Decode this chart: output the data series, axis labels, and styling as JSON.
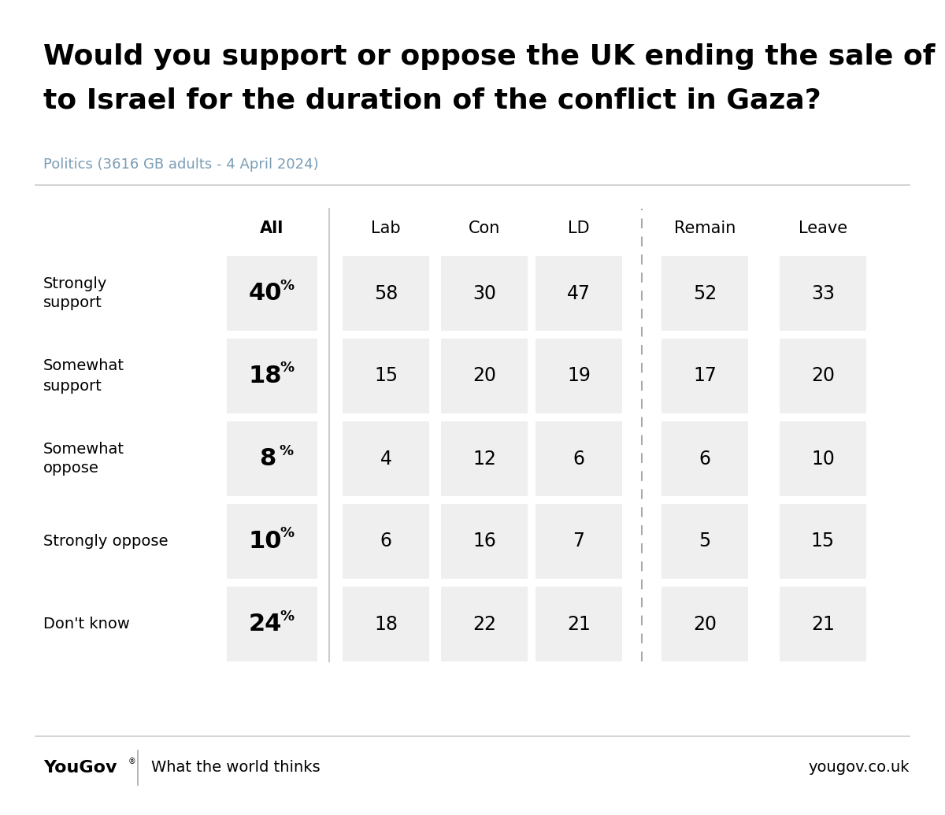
{
  "title_line1": "Would you support or oppose the UK ending the sale of arms",
  "title_line2": "to Israel for the duration of the conflict in Gaza?",
  "subtitle": "Politics (3616 GB adults - 4 April 2024)",
  "columns": [
    "All",
    "Lab",
    "Con",
    "LD",
    "Remain",
    "Leave"
  ],
  "rows": [
    {
      "label": "Strongly\nsupport",
      "values": [
        40,
        58,
        30,
        47,
        52,
        33
      ]
    },
    {
      "label": "Somewhat\nsupport",
      "values": [
        18,
        15,
        20,
        19,
        17,
        20
      ]
    },
    {
      "label": "Somewhat\noppose",
      "values": [
        8,
        4,
        12,
        6,
        6,
        10
      ]
    },
    {
      "label": "Strongly oppose",
      "values": [
        10,
        6,
        16,
        7,
        5,
        15
      ]
    },
    {
      "label": "Don't know",
      "values": [
        24,
        18,
        22,
        21,
        20,
        21
      ]
    }
  ],
  "cell_bg_color": "#efefef",
  "bg_color": "#ffffff",
  "text_color": "#000000",
  "subtitle_color": "#7a9db5",
  "divider_color": "#cccccc",
  "yougov_text": "YouGov",
  "tagline_text": "What the world thinks",
  "url_text": "yougov.co.uk",
  "title_fontsize": 26,
  "subtitle_fontsize": 13,
  "header_fontsize": 15,
  "row_label_fontsize": 14,
  "all_val_fontsize": 22,
  "all_pct_fontsize": 13,
  "cell_val_fontsize": 17,
  "footer_fontsize": 16,
  "footer_tagline_fontsize": 14
}
